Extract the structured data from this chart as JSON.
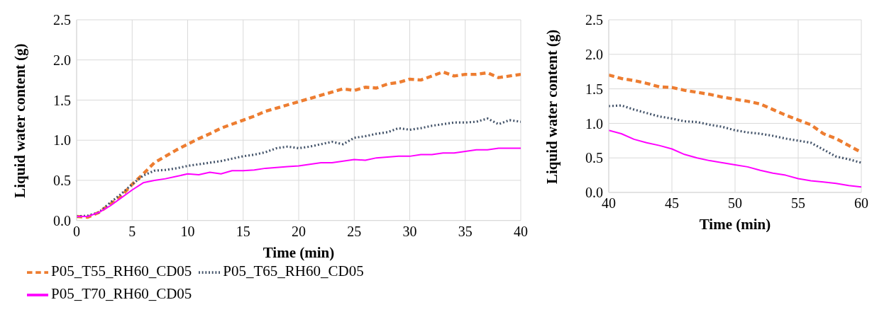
{
  "chart_data": [
    {
      "type": "line",
      "xlabel": "Time (min)",
      "ylabel": "Liquid water content (g)",
      "x": [
        0,
        1,
        2,
        3,
        4,
        5,
        6,
        7,
        8,
        9,
        10,
        11,
        12,
        13,
        14,
        15,
        16,
        17,
        18,
        19,
        20,
        21,
        22,
        23,
        24,
        25,
        26,
        27,
        28,
        29,
        30,
        31,
        32,
        33,
        34,
        35,
        36,
        37,
        38,
        39,
        40
      ],
      "xlim": [
        0,
        40
      ],
      "xticks": [
        0,
        5,
        10,
        15,
        20,
        25,
        30,
        35,
        40
      ],
      "ylim": [
        0,
        2.5
      ],
      "yticks": [
        {
          "value": 0,
          "label": "0.0"
        },
        {
          "value": 0.5,
          "label": "0.5"
        },
        {
          "value": 1,
          "label": "1.0"
        },
        {
          "value": 1.5,
          "label": "1.5"
        },
        {
          "value": 2,
          "label": "2.0"
        },
        {
          "value": 2.5,
          "label": "2.5"
        }
      ],
      "grid": true,
      "legend": "bottom",
      "marker": "none",
      "series": [
        {
          "name": "P05_T55_RH60_CD05",
          "color": "#ed7d31",
          "line_style": "dashed",
          "values": [
            0.05,
            0.04,
            0.1,
            0.2,
            0.3,
            0.45,
            0.58,
            0.72,
            0.8,
            0.88,
            0.95,
            1.02,
            1.08,
            1.15,
            1.2,
            1.25,
            1.3,
            1.36,
            1.4,
            1.44,
            1.48,
            1.52,
            1.56,
            1.6,
            1.64,
            1.62,
            1.66,
            1.65,
            1.7,
            1.72,
            1.76,
            1.75,
            1.8,
            1.85,
            1.8,
            1.82,
            1.82,
            1.84,
            1.78,
            1.8,
            1.82
          ]
        },
        {
          "name": "P05_T65_RH60_CD05",
          "color": "#44546a",
          "line_style": "dotted",
          "values": [
            0.05,
            0.06,
            0.1,
            0.22,
            0.33,
            0.45,
            0.56,
            0.62,
            0.63,
            0.65,
            0.68,
            0.7,
            0.72,
            0.74,
            0.77,
            0.8,
            0.82,
            0.85,
            0.9,
            0.92,
            0.9,
            0.92,
            0.95,
            0.98,
            0.95,
            1.03,
            1.05,
            1.08,
            1.1,
            1.15,
            1.13,
            1.15,
            1.18,
            1.2,
            1.22,
            1.22,
            1.23,
            1.27,
            1.2,
            1.25,
            1.23
          ]
        },
        {
          "name": "P05_T70_RH60_CD05",
          "color": "#ff00ff",
          "line_style": "solid",
          "values": [
            0.05,
            0.05,
            0.1,
            0.18,
            0.28,
            0.38,
            0.47,
            0.5,
            0.52,
            0.55,
            0.58,
            0.57,
            0.6,
            0.58,
            0.62,
            0.62,
            0.63,
            0.65,
            0.66,
            0.67,
            0.68,
            0.7,
            0.72,
            0.72,
            0.74,
            0.76,
            0.75,
            0.78,
            0.79,
            0.8,
            0.8,
            0.82,
            0.82,
            0.84,
            0.84,
            0.86,
            0.88,
            0.88,
            0.9,
            0.9,
            0.9
          ]
        }
      ]
    },
    {
      "type": "line",
      "xlabel": "Time (min)",
      "ylabel": "Liquid water content (g)",
      "x": [
        40,
        41,
        42,
        43,
        44,
        45,
        46,
        47,
        48,
        49,
        50,
        51,
        52,
        53,
        54,
        55,
        56,
        57,
        58,
        59,
        60
      ],
      "xlim": [
        40,
        60
      ],
      "xticks": [
        40,
        45,
        50,
        55,
        60
      ],
      "ylim": [
        0,
        2.5
      ],
      "yticks": [
        {
          "value": 0,
          "label": "0.0"
        },
        {
          "value": 0.5,
          "label": "0.5"
        },
        {
          "value": 1,
          "label": "1.0"
        },
        {
          "value": 1.5,
          "label": "1.5"
        },
        {
          "value": 2,
          "label": "2.0"
        },
        {
          "value": 2.5,
          "label": "2.5"
        }
      ],
      "grid": true,
      "marker": "none",
      "series": [
        {
          "color": "#ed7d31",
          "line_style": "dashed",
          "values": [
            1.7,
            1.65,
            1.62,
            1.58,
            1.53,
            1.52,
            1.48,
            1.45,
            1.42,
            1.38,
            1.35,
            1.32,
            1.28,
            1.2,
            1.12,
            1.05,
            0.98,
            0.85,
            0.78,
            0.68,
            0.58
          ]
        },
        {
          "color": "#44546a",
          "line_style": "dotted",
          "values": [
            1.25,
            1.26,
            1.2,
            1.15,
            1.1,
            1.07,
            1.03,
            1.02,
            0.98,
            0.95,
            0.9,
            0.87,
            0.85,
            0.82,
            0.78,
            0.75,
            0.72,
            0.62,
            0.52,
            0.48,
            0.43
          ]
        },
        {
          "color": "#ff00ff",
          "line_style": "solid",
          "values": [
            0.9,
            0.85,
            0.77,
            0.72,
            0.68,
            0.63,
            0.55,
            0.5,
            0.46,
            0.43,
            0.4,
            0.37,
            0.32,
            0.28,
            0.25,
            0.2,
            0.17,
            0.15,
            0.13,
            0.1,
            0.08
          ]
        }
      ]
    }
  ]
}
